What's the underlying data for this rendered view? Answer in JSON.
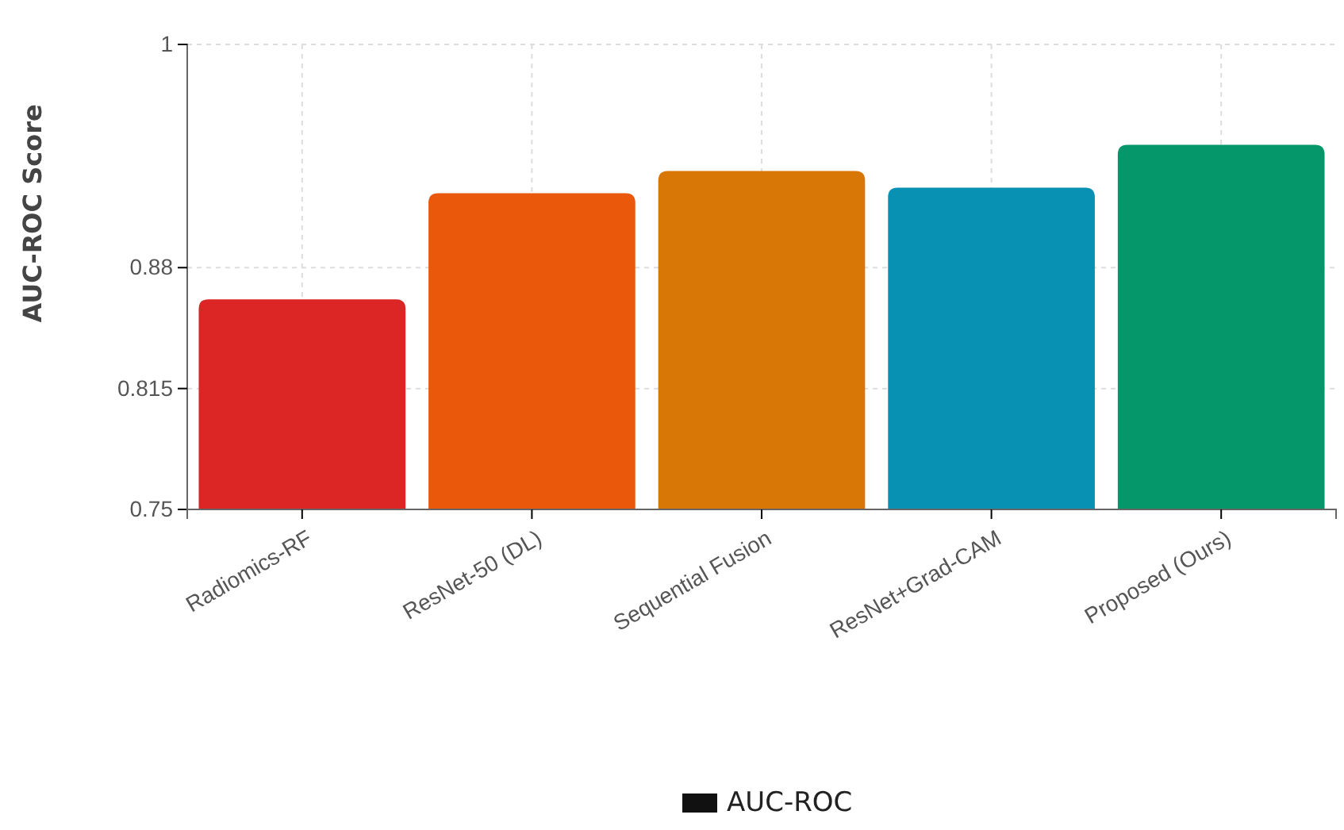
{
  "chart_data": {
    "type": "bar",
    "ylabel": "AUC-ROC Score",
    "categories": [
      "Radiomics-RF",
      "ResNet-50 (DL)",
      "Sequential Fusion",
      "ResNet+Grad-CAM",
      "Proposed (Ours)"
    ],
    "series": [
      {
        "name": "AUC-ROC",
        "color": "#111111",
        "colors": [
          "#dc2626",
          "#ea580c",
          "#d97706",
          "#0891b2",
          "#059669"
        ],
        "values": [
          0.863,
          0.92,
          0.932,
          0.923,
          0.946
        ]
      }
    ],
    "ylim": [
      0.75,
      1
    ],
    "yticks": [
      0.75,
      0.815,
      0.88,
      1
    ],
    "grid": true,
    "legend": "bottom"
  }
}
